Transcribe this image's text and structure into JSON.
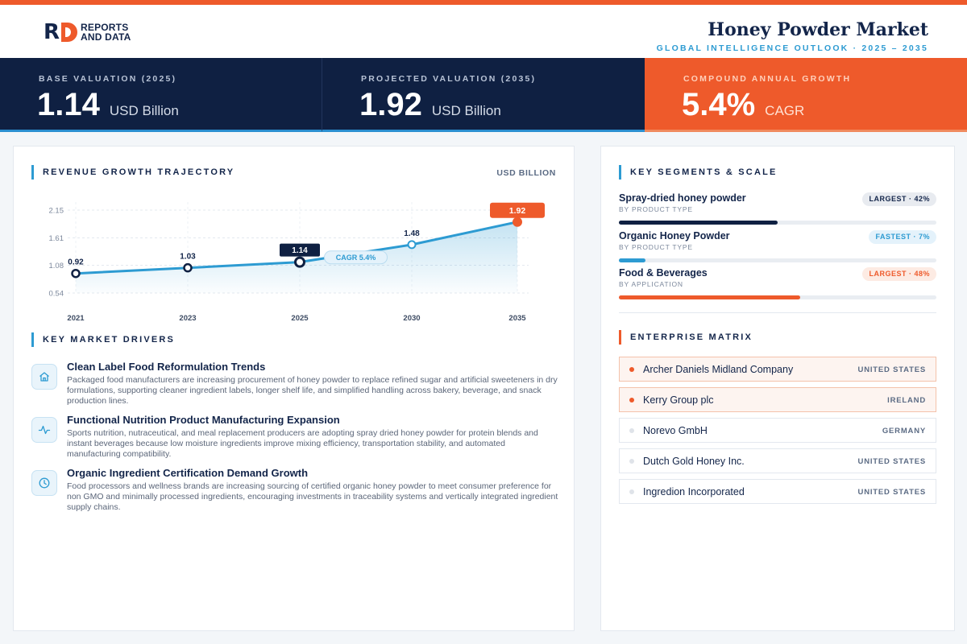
{
  "brand": {
    "line1": "REPORTS",
    "line2": "AND DATA"
  },
  "header": {
    "title": "Honey Powder Market",
    "subtitle": "GLOBAL INTELLIGENCE OUTLOOK  ·  2025 – 2035"
  },
  "kpis": [
    {
      "label": "BASE VALUATION (2025)",
      "value": "1.14",
      "unit": "USD Billion"
    },
    {
      "label": "PROJECTED VALUATION (2035)",
      "value": "1.92",
      "unit": "USD Billion"
    },
    {
      "label": "COMPOUND ANNUAL GROWTH",
      "value": "5.4%",
      "unit": "CAGR"
    }
  ],
  "trajectory": {
    "heading": "REVENUE GROWTH TRAJECTORY",
    "unit": "USD BILLION"
  },
  "chart_data": {
    "type": "area",
    "title": "REVENUE GROWTH TRAJECTORY",
    "ylabel": "USD BILLION",
    "categories": [
      "2021",
      "2023",
      "2025",
      "2030",
      "2035"
    ],
    "values": [
      0.92,
      1.03,
      1.14,
      1.48,
      1.92
    ],
    "value_labels": [
      "0.92",
      "1.03",
      "1.14",
      "1.48",
      "1.92"
    ],
    "yticks": [
      "2.15",
      "1.61",
      "1.08",
      "0.54"
    ],
    "ytick_values": [
      2.15,
      1.61,
      1.08,
      0.54
    ],
    "ylim": [
      0.54,
      2.15
    ],
    "annotation": "CAGR 5.4%",
    "grid": true,
    "colors": {
      "line": "#2d9bd2",
      "highlight": "#ee5a2b",
      "base_marker": "#0f2042"
    }
  },
  "drivers": {
    "heading": "KEY MARKET DRIVERS",
    "items": [
      {
        "icon": "home-icon",
        "title": "Clean Label Food Reformulation Trends",
        "desc": "Packaged food manufacturers are increasing procurement of honey powder to replace refined sugar and artificial sweeteners in dry formulations, supporting cleaner ingredient labels, longer shelf life, and simplified handling across bakery, beverage, and snack production lines."
      },
      {
        "icon": "activity-icon",
        "title": "Functional Nutrition Product Manufacturing Expansion",
        "desc": "Sports nutrition, nutraceutical, and meal replacement producers are adopting spray dried honey powder for protein blends and instant beverages because low moisture ingredients improve mixing efficiency, transportation stability, and automated manufacturing compatibility."
      },
      {
        "icon": "clock-icon",
        "title": "Organic Ingredient Certification Demand Growth",
        "desc": "Food processors and wellness brands are increasing sourcing of certified organic honey powder to meet consumer preference for non GMO and minimally processed ingredients, encouraging investments in traceability systems and vertically integrated ingredient supply chains."
      }
    ]
  },
  "segments": {
    "heading": "KEY SEGMENTS & SCALE",
    "items": [
      {
        "name": "Spray-dried honey powder",
        "category": "BY PRODUCT TYPE",
        "badge": "LARGEST · 42%",
        "share": 0.42,
        "color": "#0f2042"
      },
      {
        "name": "Organic Honey Powder",
        "category": "BY PRODUCT TYPE",
        "badge": "FASTEST · 7%",
        "share": 0.07,
        "color": "#2d9bd2"
      },
      {
        "name": "Food & Beverages",
        "category": "BY APPLICATION",
        "badge": "LARGEST · 48%",
        "share": 0.48,
        "color": "#ee5a2b"
      }
    ]
  },
  "matrix": {
    "heading": "ENTERPRISE MATRIX",
    "rows": [
      {
        "name": "Archer Daniels Midland Company",
        "country": "UNITED STATES"
      },
      {
        "name": "Kerry Group plc",
        "country": "IRELAND"
      },
      {
        "name": "Norevo GmbH",
        "country": "GERMANY"
      },
      {
        "name": "Dutch Gold Honey Inc.",
        "country": "UNITED STATES"
      },
      {
        "name": "Ingredion Incorporated",
        "country": "UNITED STATES"
      }
    ]
  },
  "colors": {
    "accent": "#ee5a2b",
    "navy": "#0f2042",
    "blue": "#2d9bd2"
  }
}
